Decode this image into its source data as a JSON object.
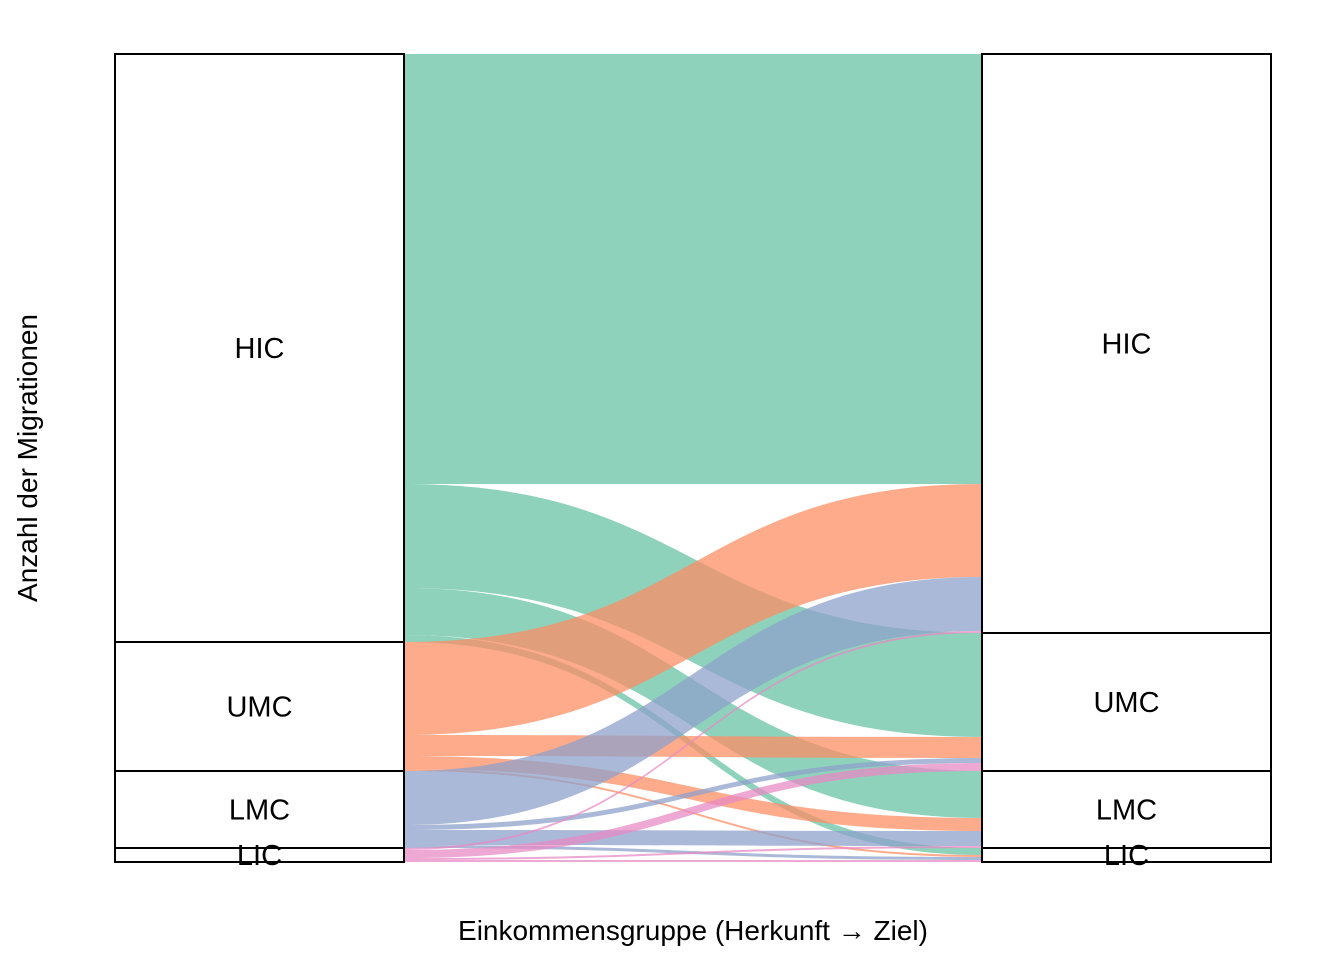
{
  "chart_data": {
    "type": "alluvial",
    "xlabel": "Einkommensgruppe (Herkunft → Ziel)",
    "ylabel": "Anzahl der Migrationen",
    "axes": [
      "Herkunft",
      "Ziel"
    ],
    "strata": [
      "HIC",
      "UMC",
      "LMC",
      "LIC"
    ],
    "colors": {
      "HIC": "#66c2a5",
      "UMC": "#fc8d62",
      "LMC": "#8da0cb",
      "LIC": "#e78ac3"
    },
    "flows": [
      {
        "from": "HIC",
        "to": "HIC",
        "value": 430
      },
      {
        "from": "HIC",
        "to": "UMC",
        "value": 104
      },
      {
        "from": "HIC",
        "to": "LMC",
        "value": 47
      },
      {
        "from": "HIC",
        "to": "LIC",
        "value": 7
      },
      {
        "from": "UMC",
        "to": "HIC",
        "value": 93
      },
      {
        "from": "UMC",
        "to": "UMC",
        "value": 21
      },
      {
        "from": "UMC",
        "to": "LMC",
        "value": 13
      },
      {
        "from": "UMC",
        "to": "LIC",
        "value": 2
      },
      {
        "from": "LMC",
        "to": "HIC",
        "value": 54
      },
      {
        "from": "LMC",
        "to": "UMC",
        "value": 5
      },
      {
        "from": "LMC",
        "to": "LMC",
        "value": 15
      },
      {
        "from": "LMC",
        "to": "LIC",
        "value": 3
      },
      {
        "from": "LIC",
        "to": "HIC",
        "value": 2
      },
      {
        "from": "LIC",
        "to": "UMC",
        "value": 8
      },
      {
        "from": "LIC",
        "to": "LMC",
        "value": 2
      },
      {
        "from": "LIC",
        "to": "LIC",
        "value": 2
      }
    ]
  }
}
